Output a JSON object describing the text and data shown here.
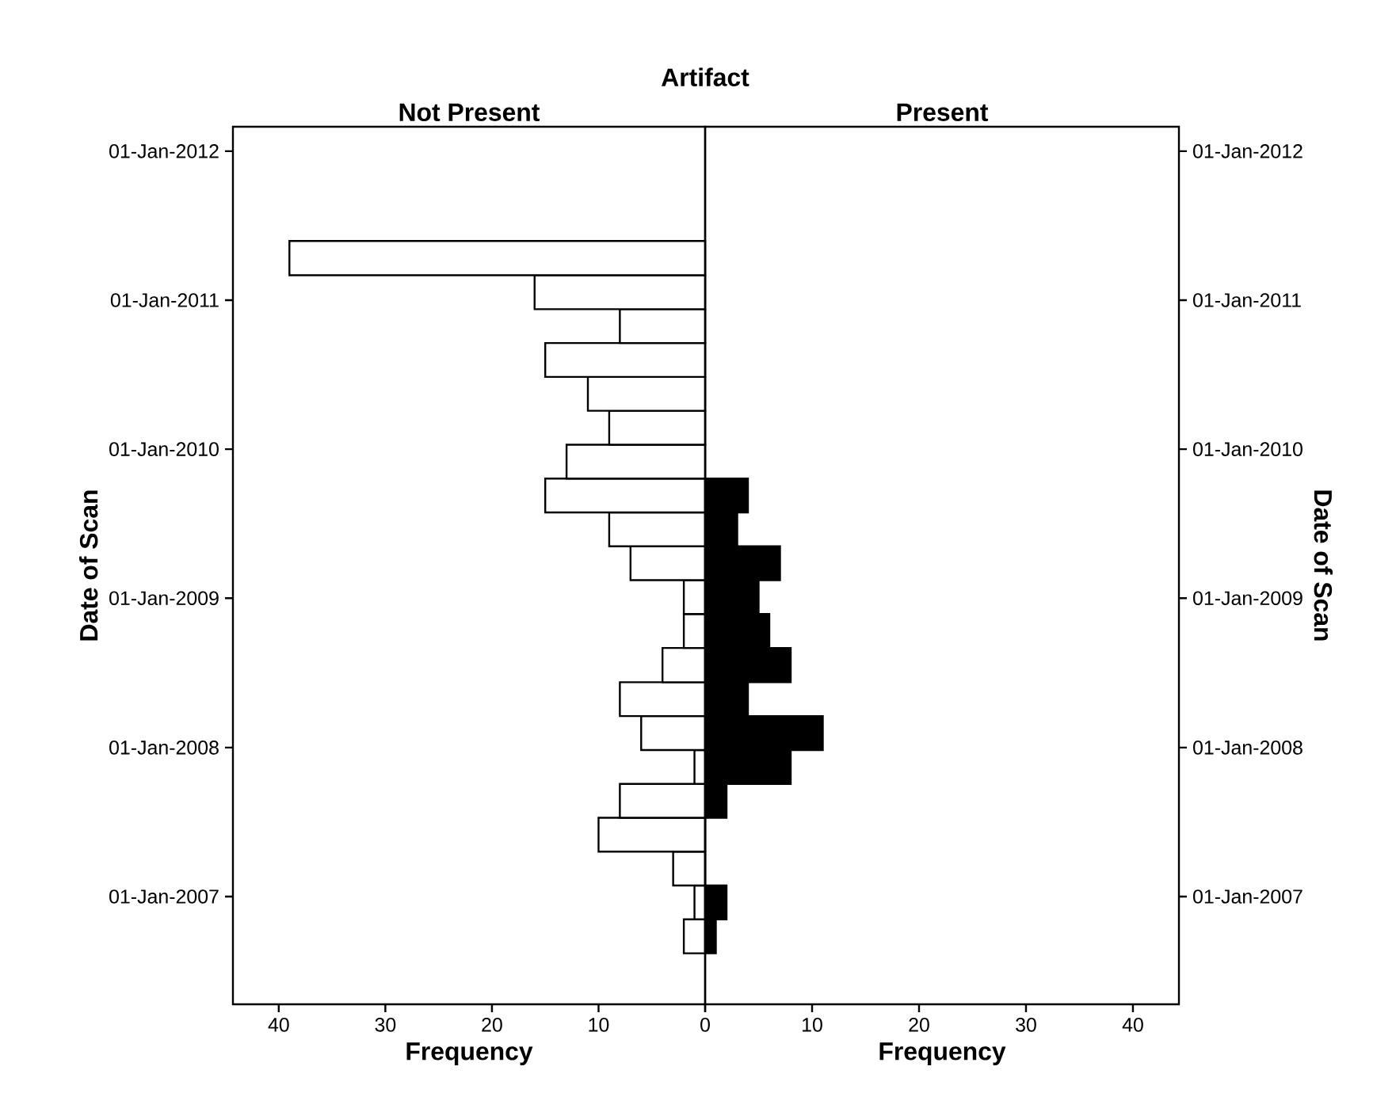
{
  "chart_data": [
    {
      "type": "histogram",
      "orientation": "horizontal",
      "title": "Artifact",
      "subtitle": "Not Present",
      "xlabel": "Frequency",
      "ylabel": "Date of Scan",
      "color": "#ffffff",
      "bins": [
        "2006-08-15",
        "2006-11-06",
        "2007-01-28",
        "2007-04-21",
        "2007-07-13",
        "2007-10-04",
        "2007-12-26",
        "2008-03-18",
        "2008-06-09",
        "2008-09-01",
        "2008-11-23",
        "2009-02-14",
        "2009-05-08",
        "2009-07-30",
        "2009-10-21",
        "2010-01-12",
        "2010-04-05",
        "2010-06-27",
        "2010-09-18",
        "2010-12-10",
        "2011-03-03",
        "2011-05-26"
      ],
      "values": [
        2,
        1,
        3,
        10,
        8,
        1,
        6,
        8,
        4,
        2,
        2,
        7,
        9,
        15,
        13,
        9,
        11,
        15,
        8,
        16,
        39
      ],
      "xlim": [
        44.3,
        0
      ],
      "xticks": [
        {
          "value": 0,
          "label": null
        },
        10,
        20,
        30,
        40
      ],
      "ylim": [
        "2006-04-12",
        "2012-03-01"
      ],
      "yticks": [
        {
          "value": "2007-01-01",
          "label": "01-Jan-2007"
        },
        {
          "value": "2008-01-01",
          "label": "01-Jan-2008"
        },
        {
          "value": "2009-01-01",
          "label": "01-Jan-2009"
        },
        {
          "value": "2010-01-01",
          "label": "01-Jan-2010"
        },
        {
          "value": "2011-01-01",
          "label": "01-Jan-2011"
        },
        {
          "value": "2012-01-01",
          "label": "01-Jan-2012"
        }
      ]
    },
    {
      "type": "histogram",
      "orientation": "horizontal",
      "subtitle": "Present",
      "xlabel": "Frequency",
      "ylabel": "Date of Scan",
      "color": "#000000",
      "bins": [
        "2006-08-15",
        "2006-11-06",
        "2007-01-28",
        "2007-07-13",
        "2007-10-04",
        "2007-12-26",
        "2008-03-18",
        "2008-06-09",
        "2008-09-01",
        "2008-11-23",
        "2009-02-14",
        "2009-05-08",
        "2009-07-30",
        "2009-10-21"
      ],
      "values": [
        1,
        2,
        0,
        2,
        8,
        11,
        4,
        8,
        6,
        5,
        7,
        3,
        4
      ],
      "xlim": [
        0,
        44.3
      ],
      "xticks": [
        0,
        10,
        20,
        30,
        40
      ],
      "ylim": [
        "2006-04-12",
        "2012-03-01"
      ],
      "yticks": [
        {
          "value": "2007-01-01",
          "label": "01-Jan-2007"
        },
        {
          "value": "2008-01-01",
          "label": "01-Jan-2008"
        },
        {
          "value": "2009-01-01",
          "label": "01-Jan-2009"
        },
        {
          "value": "2010-01-01",
          "label": "01-Jan-2010"
        },
        {
          "value": "2011-01-01",
          "label": "01-Jan-2011"
        },
        {
          "value": "2012-01-01",
          "label": "01-Jan-2012"
        }
      ]
    }
  ]
}
